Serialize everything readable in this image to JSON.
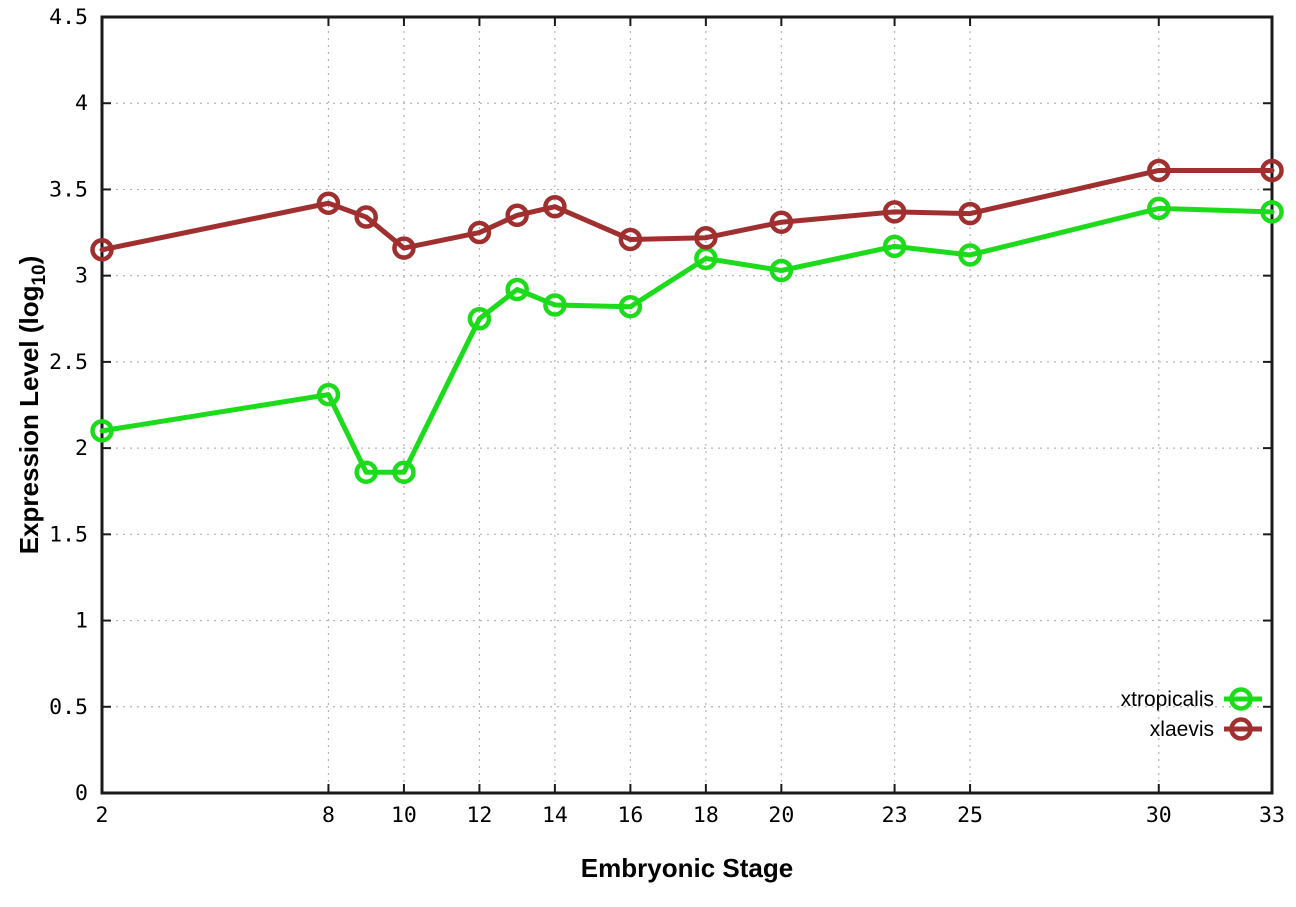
{
  "chart_data": {
    "type": "line",
    "title": "",
    "xlabel": "Embryonic Stage",
    "ylabel": {
      "text_before": "Expression Level (log",
      "subscript": "10",
      "text_after": ")"
    },
    "xlim": [
      2,
      33
    ],
    "ylim": [
      0,
      4.5
    ],
    "x_ticks": [
      2,
      8,
      10,
      12,
      14,
      16,
      18,
      20,
      23,
      25,
      30,
      33
    ],
    "x_tick_labels": [
      "2",
      "8",
      "10",
      "12",
      "14",
      "16",
      "18",
      "20",
      "23",
      "25",
      "30",
      "33"
    ],
    "y_ticks": [
      0,
      0.5,
      1,
      1.5,
      2,
      2.5,
      3,
      3.5,
      4,
      4.5
    ],
    "y_tick_labels": [
      "0",
      "0.5",
      "1",
      "1.5",
      "2",
      "2.5",
      "3",
      "3.5",
      "4",
      "4.5"
    ],
    "grid": true,
    "legend_position": "bottom-right",
    "x": [
      2,
      8,
      9,
      10,
      12,
      13,
      14,
      16,
      18,
      20,
      23,
      25,
      30,
      33
    ],
    "series": [
      {
        "name": "xtropicalis",
        "color": "#1bdb1b",
        "values": [
          2.1,
          2.31,
          1.86,
          1.86,
          2.75,
          2.92,
          2.83,
          2.82,
          3.1,
          3.03,
          3.17,
          3.12,
          3.39,
          3.37
        ]
      },
      {
        "name": "xlaevis",
        "color": "#a03030",
        "values": [
          3.15,
          3.42,
          3.34,
          3.16,
          3.25,
          3.35,
          3.4,
          3.21,
          3.22,
          3.31,
          3.37,
          3.36,
          3.61,
          3.61
        ]
      }
    ],
    "style": {
      "border_color": "#1a1a1a",
      "grid_color": "#b3b3b3",
      "tick_label_color": "#000000",
      "axis_label_color": "#000000",
      "background": "#ffffff"
    }
  }
}
